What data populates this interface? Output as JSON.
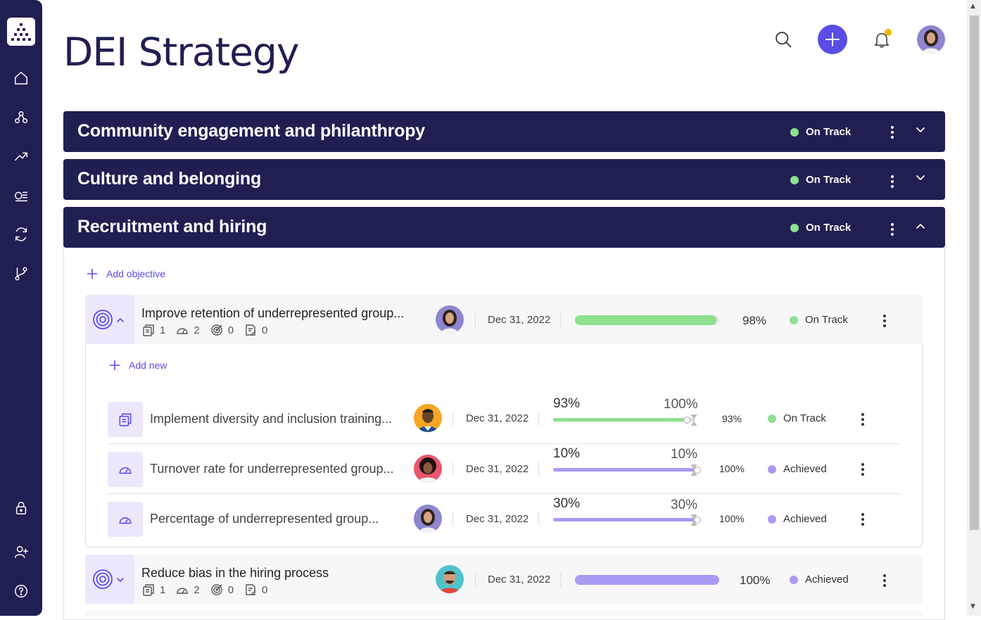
{
  "page": {
    "title": "DEI Strategy"
  },
  "sidebar": {
    "items": [
      "home-icon",
      "org-chart-icon",
      "trending-icon",
      "list-icon",
      "sync-icon",
      "branch-icon",
      "lock-icon",
      "add-user-icon",
      "help-icon"
    ]
  },
  "header": {
    "actions": [
      "search-icon",
      "add-icon",
      "bell-icon",
      "avatar"
    ]
  },
  "colors": {
    "navy": "#201f52",
    "accent": "#5b4ce6",
    "on_track": "#8de08d",
    "achieved": "#a99bf2",
    "notification": "#f7b500"
  },
  "sections": [
    {
      "title": "Community engagement and philanthropy",
      "status": "On Track",
      "expanded": false
    },
    {
      "title": "Culture and belonging",
      "status": "On Track",
      "expanded": false
    },
    {
      "title": "Recruitment and hiring",
      "status": "On Track",
      "expanded": true
    }
  ],
  "panel": {
    "add_objective": "Add objective",
    "add_new": "Add new"
  },
  "objectives": [
    {
      "title": "Improve retention of underrepresented group...",
      "meta": {
        "initiatives": "1",
        "key_results": "2",
        "goals": "0",
        "notes": "0"
      },
      "date": "Dec 31, 2022",
      "progress": 0.98,
      "progress_label": "98%",
      "status": "On Track",
      "key_results": [
        {
          "title": "Implement diversity and inclusion training...",
          "date": "Dec 31, 2022",
          "current": "93%",
          "target": "100%",
          "progress": 0.93,
          "pct": "93%",
          "status": "On Track"
        },
        {
          "title": "Turnover rate for underrepresented group...",
          "date": "Dec 31, 2022",
          "current": "10%",
          "target": "10%",
          "progress": 1.0,
          "pct": "100%",
          "status": "Achieved"
        },
        {
          "title": "Percentage of underrepresented group...",
          "date": "Dec 31, 2022",
          "current": "30%",
          "target": "30%",
          "progress": 1.0,
          "pct": "100%",
          "status": "Achieved"
        }
      ]
    },
    {
      "title": "Reduce bias in the hiring process",
      "meta": {
        "initiatives": "1",
        "key_results": "2",
        "goals": "0",
        "notes": "0"
      },
      "date": "Dec 31, 2022",
      "progress": 1.0,
      "progress_label": "100%",
      "status": "Achieved"
    }
  ]
}
